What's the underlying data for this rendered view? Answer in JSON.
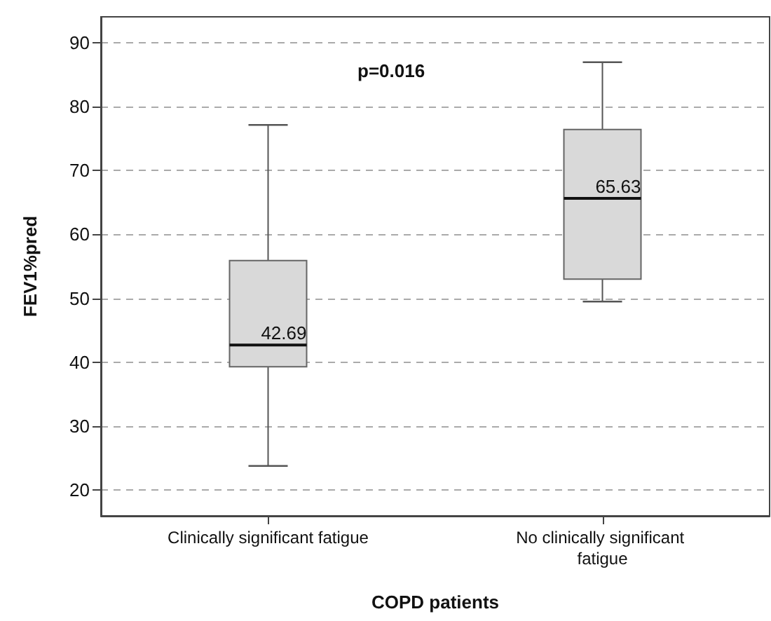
{
  "chart_data": {
    "type": "box",
    "xlabel": "COPD patients",
    "ylabel": "FEV1%pred",
    "annotations": [
      "p=0.016"
    ],
    "categories": [
      "Clinically significant fatigue",
      "No clinically significant fatigue"
    ],
    "boxes": [
      {
        "low": 23.8,
        "q1": 39.3,
        "median": 42.69,
        "q3": 55.9,
        "high": 77.1
      },
      {
        "low": 49.5,
        "q1": 53.0,
        "median": 65.63,
        "q3": 76.4,
        "high": 86.9
      }
    ],
    "value_labels": [
      "42.69",
      "65.63"
    ],
    "color": "#d9d9d9",
    "ylim": [
      16,
      94
    ],
    "yticks": [
      20,
      30,
      40,
      50,
      60,
      70,
      80,
      90
    ],
    "grid": "y"
  }
}
